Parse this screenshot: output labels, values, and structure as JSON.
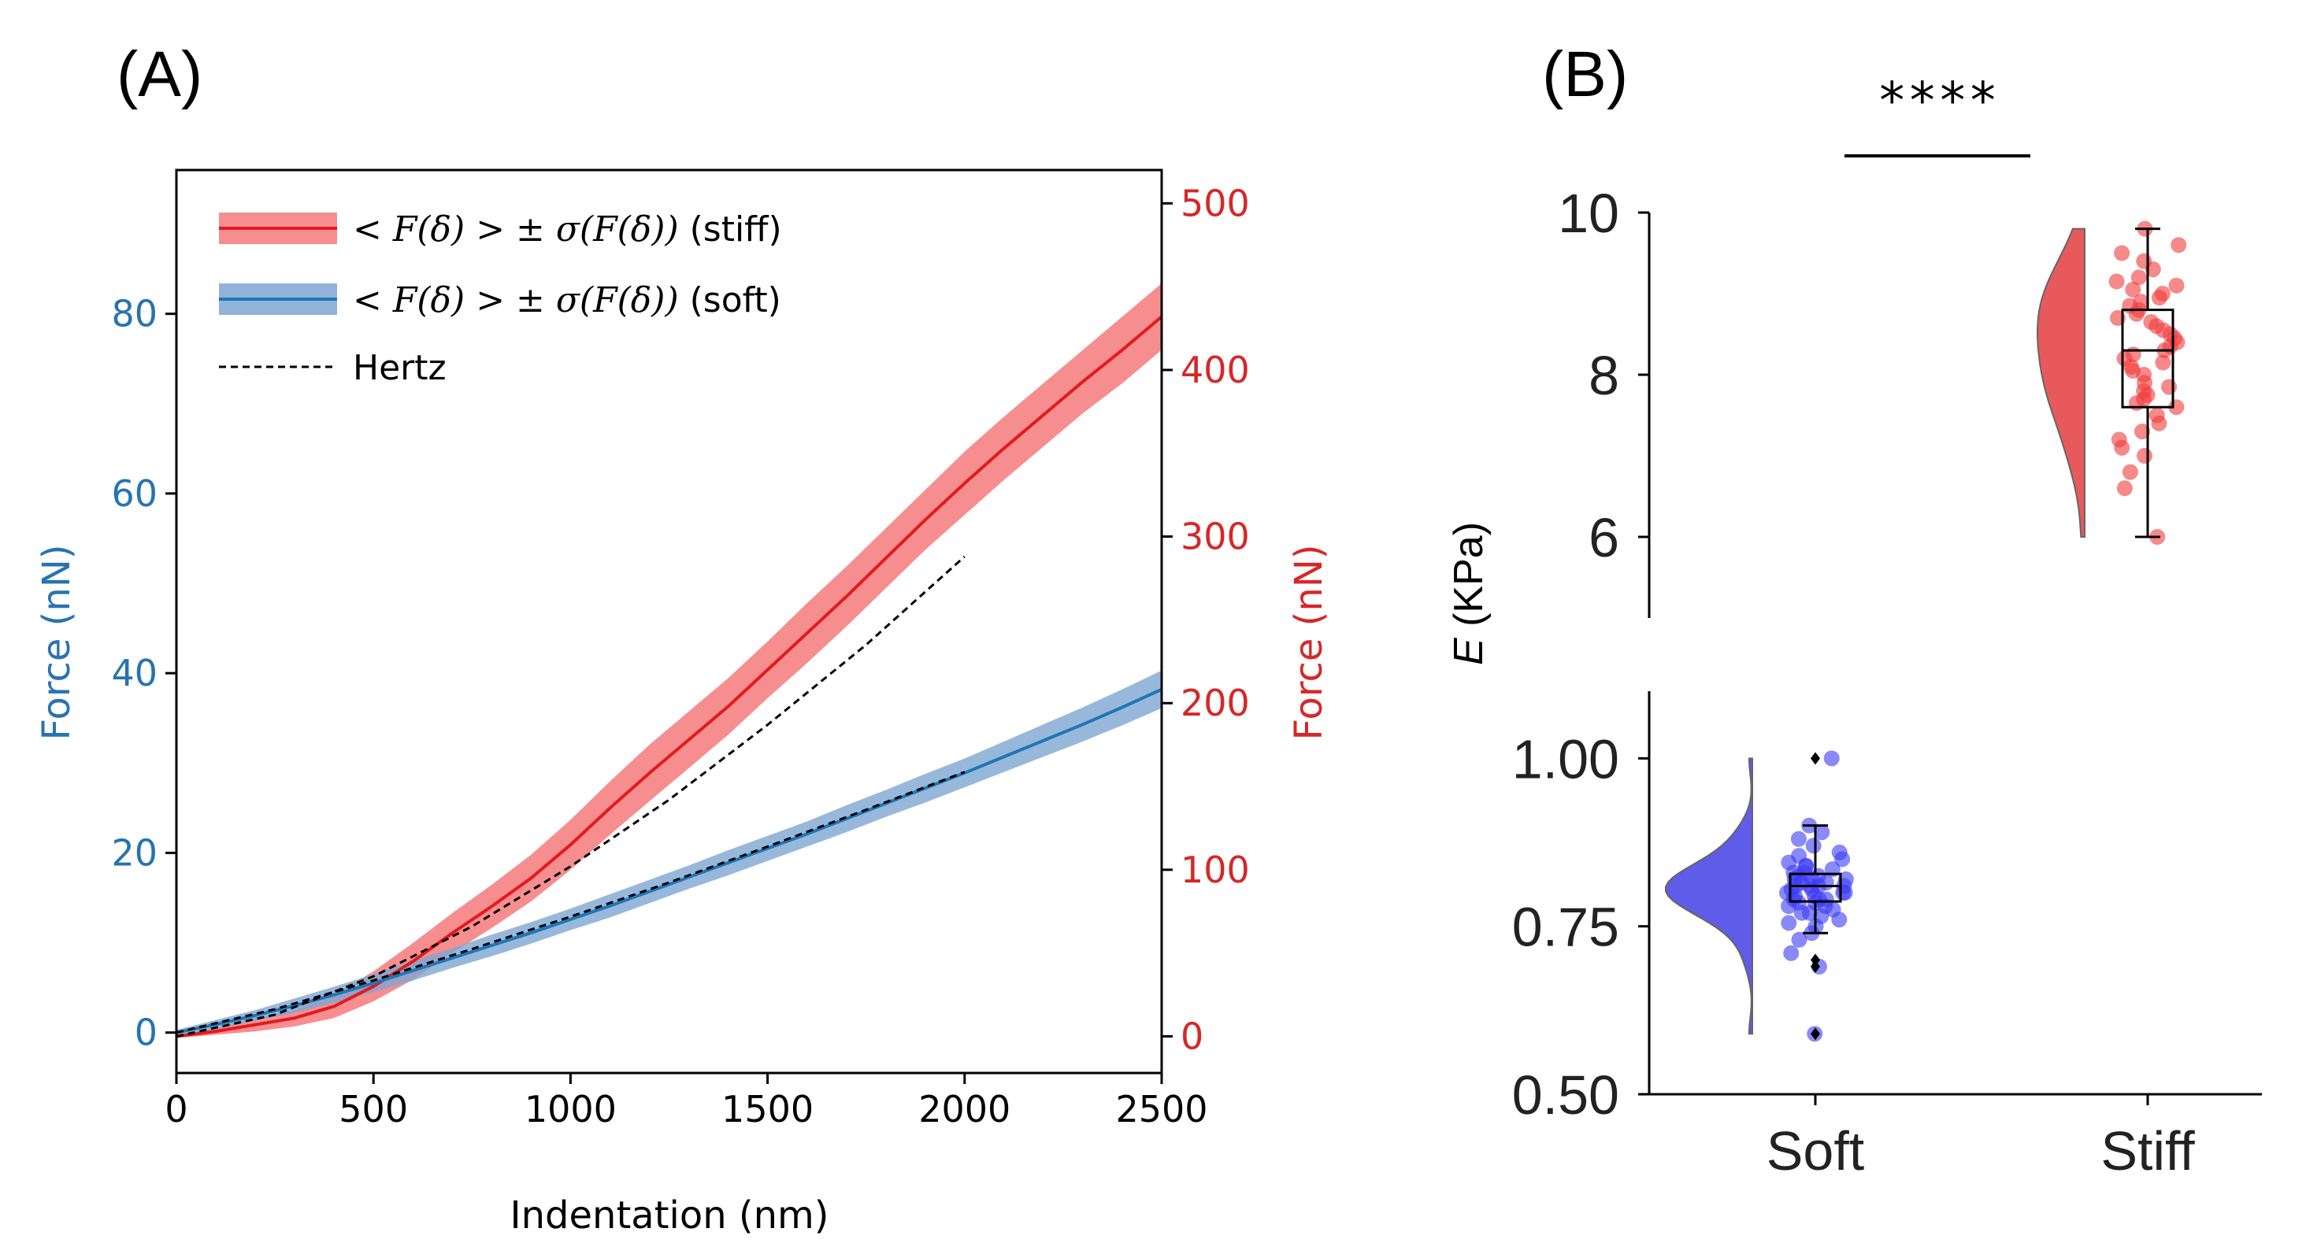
{
  "panels": {
    "a_label": "(A)",
    "b_label": "(B)"
  },
  "colors": {
    "stiff_line": "#e31a1c",
    "stiff_band": "#f47a7c",
    "soft_line": "#1f77b4",
    "soft_band": "#7ea6d2",
    "left_axis": "#2873b0",
    "right_axis": "#d62728",
    "violin_soft": "#5e5ce8",
    "violin_stiff": "#e8595c",
    "points_soft": "#3b3bf5",
    "points_stiff": "#f03a3a"
  },
  "chart_data": [
    {
      "type": "line",
      "title": "",
      "xlabel": "Indentation (nm)",
      "ylabel_left": "Force (nN)",
      "ylabel_right": "Force (nN)",
      "xlim": [
        0,
        2500
      ],
      "ylim_left": [
        -4.5,
        96
      ],
      "ylim_right": [
        -22,
        520
      ],
      "x_ticks": [
        "0",
        "500",
        "1000",
        "1500",
        "2000",
        "2500"
      ],
      "y_left_ticks": [
        "0",
        "20",
        "40",
        "60",
        "80"
      ],
      "y_right_ticks": [
        "0",
        "100",
        "200",
        "300",
        "400",
        "500"
      ],
      "legend": {
        "position": "top-left",
        "stiff_math": "< F(δ) > ± σ(F(δ))",
        "stiff_suffix": " (stiff)",
        "soft_math": "< F(δ) > ± σ(F(δ))",
        "soft_suffix": " (soft)",
        "hertz": "Hertz"
      },
      "series": [
        {
          "name": "stiff mean",
          "axis": "right",
          "x": [
            0,
            100,
            200,
            300,
            400,
            500,
            600,
            700,
            800,
            900,
            1000,
            1100,
            1200,
            1300,
            1400,
            1500,
            1600,
            1700,
            1800,
            1900,
            2000,
            2100,
            2200,
            2300,
            2400,
            2500
          ],
          "y": [
            0,
            3,
            7,
            11,
            18,
            30,
            45,
            62,
            78,
            95,
            115,
            137,
            158,
            178,
            198,
            220,
            242,
            264,
            287,
            310,
            332,
            353,
            373,
            393,
            412,
            432
          ],
          "sd": [
            1,
            2,
            4,
            5,
            7,
            9,
            11,
            12,
            13,
            14,
            15,
            16,
            17,
            17,
            17,
            17,
            18,
            18,
            18,
            18,
            19,
            19,
            19,
            19,
            20,
            20
          ]
        },
        {
          "name": "soft mean",
          "axis": "left",
          "x": [
            0,
            100,
            200,
            300,
            400,
            500,
            600,
            700,
            800,
            900,
            1000,
            1100,
            1200,
            1300,
            1400,
            1500,
            1600,
            1700,
            1800,
            1900,
            2000,
            2100,
            2200,
            2300,
            2400,
            2500
          ],
          "y": [
            0,
            0.9,
            1.9,
            3.0,
            4.2,
            5.5,
            6.9,
            8.3,
            9.7,
            11.1,
            12.6,
            14.1,
            15.7,
            17.3,
            18.9,
            20.5,
            22.1,
            23.8,
            25.5,
            27.2,
            28.9,
            30.7,
            32.5,
            34.3,
            36.2,
            38.2
          ],
          "sd": [
            0.3,
            0.5,
            0.6,
            0.8,
            0.9,
            1.0,
            1.1,
            1.1,
            1.2,
            1.2,
            1.2,
            1.3,
            1.3,
            1.3,
            1.4,
            1.4,
            1.4,
            1.5,
            1.5,
            1.6,
            1.6,
            1.7,
            1.8,
            1.9,
            2.0,
            2.1
          ]
        },
        {
          "name": "Hertz (stiff)",
          "axis": "right",
          "x": [
            0,
            250,
            500,
            750,
            1000,
            1250,
            1500,
            1750,
            2000
          ],
          "y": [
            0,
            13,
            36,
            66,
            102,
            142,
            187,
            235,
            288
          ]
        },
        {
          "name": "Hertz (soft)",
          "axis": "left",
          "x": [
            0,
            250,
            500,
            750,
            1000,
            1250,
            1500,
            1750,
            2000
          ],
          "y": [
            0,
            2.6,
            5.8,
            9.3,
            12.9,
            16.7,
            20.7,
            24.8,
            29.0
          ]
        }
      ]
    },
    {
      "type": "raincloud",
      "title": "",
      "xlabel": "",
      "ylabel": "E (KPa)",
      "ylabel_italic": "E",
      "ylabel_unit": " (KPa)",
      "categories": [
        "Soft",
        "Stiff"
      ],
      "significance": "****",
      "axis_top": {
        "ylim": [
          5.0,
          10.0
        ],
        "ticks": [
          "10",
          "8",
          "6"
        ],
        "tick_values": [
          10,
          8,
          6
        ]
      },
      "axis_bottom": {
        "ylim": [
          0.5,
          1.1
        ],
        "ticks": [
          "1.00",
          "0.75",
          "0.50"
        ],
        "tick_values": [
          1.0,
          0.75,
          0.5
        ]
      },
      "boxes": [
        {
          "category": "Soft",
          "min": 0.74,
          "q1": 0.787,
          "median": 0.81,
          "q3": 0.828,
          "max": 0.9,
          "outliers": [
            1.0,
            0.7,
            0.69,
            0.59
          ],
          "points": [
            0.59,
            0.69,
            0.71,
            0.73,
            0.74,
            0.75,
            0.755,
            0.76,
            0.765,
            0.77,
            0.77,
            0.775,
            0.78,
            0.78,
            0.785,
            0.785,
            0.79,
            0.79,
            0.79,
            0.795,
            0.795,
            0.8,
            0.8,
            0.8,
            0.805,
            0.805,
            0.81,
            0.81,
            0.81,
            0.81,
            0.815,
            0.815,
            0.82,
            0.82,
            0.82,
            0.825,
            0.825,
            0.83,
            0.83,
            0.835,
            0.84,
            0.84,
            0.845,
            0.85,
            0.855,
            0.86,
            0.87,
            0.88,
            0.89,
            0.9,
            1.0
          ]
        },
        {
          "category": "Stiff",
          "min": 6.0,
          "q1": 7.6,
          "median": 8.3,
          "q3": 8.8,
          "max": 9.8,
          "outliers": [],
          "points": [
            6.0,
            6.6,
            6.8,
            7.0,
            7.1,
            7.2,
            7.3,
            7.4,
            7.5,
            7.6,
            7.65,
            7.7,
            7.75,
            7.8,
            7.85,
            7.9,
            8.0,
            8.05,
            8.1,
            8.15,
            8.2,
            8.25,
            8.3,
            8.35,
            8.4,
            8.45,
            8.5,
            8.55,
            8.6,
            8.65,
            8.7,
            8.75,
            8.8,
            8.85,
            8.9,
            8.95,
            9.0,
            9.05,
            9.1,
            9.15,
            9.2,
            9.3,
            9.4,
            9.5,
            9.6,
            9.8
          ]
        }
      ]
    }
  ]
}
